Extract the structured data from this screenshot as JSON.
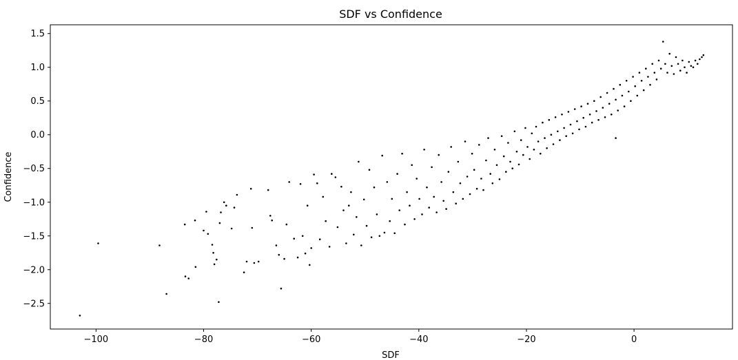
{
  "chart_data": {
    "type": "scatter",
    "title": "SDF vs Confidence",
    "xlabel": "SDF",
    "ylabel": "Confidence",
    "xlim": [
      -108.5,
      18.3
    ],
    "ylim": [
      -2.88,
      1.63
    ],
    "x_ticks": [
      -100,
      -80,
      -60,
      -40,
      -20,
      0
    ],
    "x_tick_labels": [
      "−100",
      "−80",
      "−60",
      "−40",
      "−20",
      "0"
    ],
    "y_ticks": [
      -2.5,
      -2.0,
      -1.5,
      -1.0,
      -0.5,
      0.0,
      0.5,
      1.0,
      1.5
    ],
    "y_tick_labels": [
      "−2.5",
      "−2.0",
      "−1.5",
      "−1.0",
      "−0.5",
      "0.0",
      "0.5",
      "1.0",
      "1.5"
    ],
    "grid": false,
    "marker_color": "#000000",
    "points": [
      [
        -103.0,
        -2.68
      ],
      [
        -99.6,
        -1.61
      ],
      [
        -88.2,
        -1.64
      ],
      [
        -86.9,
        -2.36
      ],
      [
        -83.5,
        -1.33
      ],
      [
        -83.4,
        -2.1
      ],
      [
        -82.8,
        -2.13
      ],
      [
        -81.6,
        -1.27
      ],
      [
        -81.5,
        -1.96
      ],
      [
        -80.0,
        -1.42
      ],
      [
        -79.5,
        -1.14
      ],
      [
        -79.2,
        -1.47
      ],
      [
        -78.4,
        -1.63
      ],
      [
        -78.2,
        -1.75
      ],
      [
        -78.0,
        -1.92
      ],
      [
        -77.6,
        -1.85
      ],
      [
        -77.2,
        -2.48
      ],
      [
        -77.0,
        -1.31
      ],
      [
        -76.8,
        -1.15
      ],
      [
        -76.2,
        -1.0
      ],
      [
        -75.8,
        -1.05
      ],
      [
        -74.8,
        -1.39
      ],
      [
        -74.3,
        -1.08
      ],
      [
        -73.8,
        -0.89
      ],
      [
        -72.5,
        -2.04
      ],
      [
        -72.0,
        -1.88
      ],
      [
        -71.2,
        -0.8
      ],
      [
        -71.0,
        -1.38
      ],
      [
        -70.6,
        -1.9
      ],
      [
        -69.8,
        -1.88
      ],
      [
        -68.0,
        -0.82
      ],
      [
        -67.6,
        -1.2
      ],
      [
        -67.3,
        -1.27
      ],
      [
        -66.5,
        -1.64
      ],
      [
        -66.0,
        -1.78
      ],
      [
        -65.6,
        -2.28
      ],
      [
        -65.0,
        -1.84
      ],
      [
        -64.6,
        -1.33
      ],
      [
        -64.1,
        -0.7
      ],
      [
        -63.2,
        -1.54
      ],
      [
        -62.5,
        -1.82
      ],
      [
        -62.0,
        -0.73
      ],
      [
        -61.6,
        -1.5
      ],
      [
        -61.1,
        -1.76
      ],
      [
        -60.7,
        -1.05
      ],
      [
        -60.3,
        -1.93
      ],
      [
        -60.0,
        -1.68
      ],
      [
        -59.5,
        -0.59
      ],
      [
        -58.9,
        -0.72
      ],
      [
        -58.4,
        -1.55
      ],
      [
        -57.8,
        -0.92
      ],
      [
        -57.3,
        -1.28
      ],
      [
        -56.6,
        -1.66
      ],
      [
        -56.2,
        -0.58
      ],
      [
        -55.5,
        -0.63
      ],
      [
        -55.1,
        -1.37
      ],
      [
        -54.4,
        -0.77
      ],
      [
        -54.0,
        -1.12
      ],
      [
        -53.5,
        -1.61
      ],
      [
        -53.0,
        -1.05
      ],
      [
        -52.6,
        -0.85
      ],
      [
        -52.1,
        -1.48
      ],
      [
        -51.6,
        -1.22
      ],
      [
        -51.2,
        -0.4
      ],
      [
        -50.7,
        -1.64
      ],
      [
        -50.2,
        -0.96
      ],
      [
        -49.7,
        -1.35
      ],
      [
        -49.2,
        -0.52
      ],
      [
        -48.8,
        -1.52
      ],
      [
        -48.3,
        -0.78
      ],
      [
        -47.8,
        -1.18
      ],
      [
        -47.3,
        -1.5
      ],
      [
        -46.8,
        -0.31
      ],
      [
        -46.4,
        -1.45
      ],
      [
        -45.9,
        -0.7
      ],
      [
        -45.4,
        -1.28
      ],
      [
        -45.0,
        -0.95
      ],
      [
        -44.5,
        -1.46
      ],
      [
        -44.0,
        -0.58
      ],
      [
        -43.6,
        -1.12
      ],
      [
        -43.1,
        -0.28
      ],
      [
        -42.6,
        -1.33
      ],
      [
        -42.2,
        -0.85
      ],
      [
        -41.7,
        -1.05
      ],
      [
        -41.3,
        -0.45
      ],
      [
        -40.8,
        -1.25
      ],
      [
        -40.4,
        -0.65
      ],
      [
        -39.9,
        -0.95
      ],
      [
        -39.4,
        -1.18
      ],
      [
        -39.0,
        -0.22
      ],
      [
        -38.5,
        -0.78
      ],
      [
        -38.1,
        -1.08
      ],
      [
        -37.6,
        -0.48
      ],
      [
        -37.2,
        -0.92
      ],
      [
        -36.7,
        -1.15
      ],
      [
        -36.3,
        -0.3
      ],
      [
        -35.8,
        -0.7
      ],
      [
        -35.4,
        -0.98
      ],
      [
        -34.9,
        -1.1
      ],
      [
        -34.5,
        -0.55
      ],
      [
        -34.0,
        -0.18
      ],
      [
        -33.6,
        -0.85
      ],
      [
        -33.1,
        -1.02
      ],
      [
        -32.7,
        -0.4
      ],
      [
        -32.3,
        -0.72
      ],
      [
        -31.8,
        -0.95
      ],
      [
        -31.4,
        -0.1
      ],
      [
        -31.0,
        -0.62
      ],
      [
        -30.5,
        -0.88
      ],
      [
        -30.1,
        -0.28
      ],
      [
        -29.7,
        -0.52
      ],
      [
        -29.2,
        -0.8
      ],
      [
        -28.8,
        -0.15
      ],
      [
        -28.4,
        -0.65
      ],
      [
        -28.0,
        -0.82
      ],
      [
        -27.5,
        -0.38
      ],
      [
        -27.1,
        -0.05
      ],
      [
        -26.7,
        -0.58
      ],
      [
        -26.3,
        -0.72
      ],
      [
        -25.9,
        -0.22
      ],
      [
        -25.5,
        -0.45
      ],
      [
        -25.0,
        -0.66
      ],
      [
        -24.6,
        -0.02
      ],
      [
        -24.2,
        -0.32
      ],
      [
        -23.8,
        -0.55
      ],
      [
        -23.4,
        -0.12
      ],
      [
        -23.0,
        -0.4
      ],
      [
        -22.6,
        -0.5
      ],
      [
        -22.2,
        0.05
      ],
      [
        -21.8,
        -0.25
      ],
      [
        -21.4,
        -0.44
      ],
      [
        -21.0,
        -0.08
      ],
      [
        -20.6,
        -0.3
      ],
      [
        -20.2,
        0.1
      ],
      [
        -19.8,
        -0.18
      ],
      [
        -19.4,
        -0.36
      ],
      [
        -19.0,
        0.02
      ],
      [
        -18.6,
        -0.22
      ],
      [
        -18.2,
        0.12
      ],
      [
        -17.8,
        -0.1
      ],
      [
        -17.4,
        -0.28
      ],
      [
        -17.0,
        0.18
      ],
      [
        -16.6,
        -0.05
      ],
      [
        -16.2,
        -0.2
      ],
      [
        -15.8,
        0.22
      ],
      [
        -15.4,
        0.0
      ],
      [
        -15.0,
        -0.14
      ],
      [
        -14.6,
        0.26
      ],
      [
        -14.2,
        0.05
      ],
      [
        -13.8,
        -0.08
      ],
      [
        -13.4,
        0.3
      ],
      [
        -13.0,
        0.1
      ],
      [
        -12.6,
        -0.02
      ],
      [
        -12.2,
        0.34
      ],
      [
        -11.8,
        0.15
      ],
      [
        -11.4,
        0.02
      ],
      [
        -11.0,
        0.38
      ],
      [
        -10.6,
        0.2
      ],
      [
        -10.2,
        0.08
      ],
      [
        -9.8,
        0.42
      ],
      [
        -9.4,
        0.25
      ],
      [
        -9.0,
        0.12
      ],
      [
        -8.6,
        0.46
      ],
      [
        -8.2,
        0.3
      ],
      [
        -7.8,
        0.18
      ],
      [
        -7.4,
        0.5
      ],
      [
        -7.0,
        0.35
      ],
      [
        -6.6,
        0.22
      ],
      [
        -6.2,
        0.56
      ],
      [
        -5.8,
        0.4
      ],
      [
        -5.4,
        0.26
      ],
      [
        -5.0,
        0.62
      ],
      [
        -4.6,
        0.46
      ],
      [
        -4.2,
        0.3
      ],
      [
        -3.8,
        0.68
      ],
      [
        -3.4,
        0.52
      ],
      [
        -3.4,
        -0.05
      ],
      [
        -3.0,
        0.36
      ],
      [
        -2.6,
        0.74
      ],
      [
        -2.2,
        0.58
      ],
      [
        -1.8,
        0.42
      ],
      [
        -1.4,
        0.8
      ],
      [
        -1.0,
        0.64
      ],
      [
        -0.6,
        0.5
      ],
      [
        -0.2,
        0.86
      ],
      [
        0.2,
        0.72
      ],
      [
        0.6,
        0.58
      ],
      [
        1.0,
        0.92
      ],
      [
        1.4,
        0.8
      ],
      [
        1.8,
        0.66
      ],
      [
        2.2,
        0.98
      ],
      [
        2.6,
        0.86
      ],
      [
        3.0,
        0.74
      ],
      [
        3.4,
        1.05
      ],
      [
        3.8,
        0.92
      ],
      [
        4.2,
        0.82
      ],
      [
        4.6,
        1.1
      ],
      [
        5.0,
        0.98
      ],
      [
        5.4,
        1.38
      ],
      [
        5.8,
        1.05
      ],
      [
        6.2,
        0.92
      ],
      [
        6.6,
        1.2
      ],
      [
        7.0,
        1.02
      ],
      [
        7.4,
        0.9
      ],
      [
        7.8,
        1.15
      ],
      [
        8.2,
        1.05
      ],
      [
        8.6,
        0.95
      ],
      [
        9.0,
        1.1
      ],
      [
        9.4,
        1.0
      ],
      [
        9.8,
        0.92
      ],
      [
        10.2,
        1.08
      ],
      [
        10.6,
        1.02
      ],
      [
        11.0,
        1.0
      ],
      [
        11.4,
        1.1
      ],
      [
        11.8,
        1.05
      ],
      [
        12.2,
        1.12
      ],
      [
        12.6,
        1.15
      ],
      [
        12.9,
        1.18
      ]
    ]
  }
}
